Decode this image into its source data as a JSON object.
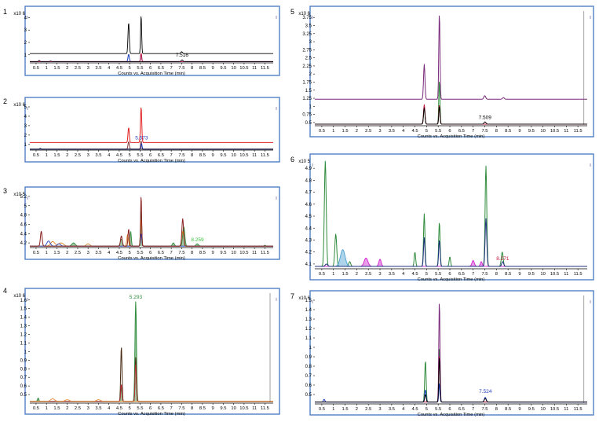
{
  "chart_data": [
    {
      "id": "1",
      "type": "line",
      "panel_label": "1",
      "multiplier": "x10 6",
      "xlabel": "Counts vs. Acquisition Time (min)",
      "x_ticks": [
        "0.5",
        "1",
        "1.5",
        "2",
        "2.5",
        "3",
        "3.5",
        "4",
        "4.5",
        "5",
        "5.5",
        "6",
        "6.5",
        "7",
        "7.5",
        "8",
        "8.5",
        "9",
        "9.5",
        "10",
        "10.5",
        "11",
        "11.5"
      ],
      "xlim": [
        0.2,
        11.9
      ],
      "y_ticks": [
        "1",
        "2",
        "3",
        "4"
      ],
      "ylim": [
        0.35,
        4.6
      ],
      "annotations": [
        {
          "text": "7.516",
          "x": 7.516,
          "y": 0.72,
          "color": "#000000"
        }
      ],
      "series": [
        {
          "color": "#000000",
          "baseline": 1.1,
          "width": 0.9,
          "peaks": [
            [
              4.95,
              3.6,
              0.03
            ],
            [
              5.55,
              4.2,
              0.025
            ],
            [
              7.5,
              1.25,
              0.04
            ]
          ]
        },
        {
          "color": "#1f3fbf",
          "baseline": 0.45,
          "width": 1.0,
          "peaks": [
            [
              4.95,
              1.05,
              0.03
            ],
            [
              5.55,
              1.1,
              0.025
            ]
          ]
        },
        {
          "color": "#c0143c",
          "baseline": 0.45,
          "width": 1.0,
          "peaks": [
            [
              5.55,
              1.15,
              0.025
            ]
          ]
        },
        {
          "color": "#000000",
          "baseline": 0.45,
          "width": 0.8,
          "peaks": [
            [
              0.65,
              0.55,
              0.03
            ],
            [
              1.2,
              0.5,
              0.03
            ],
            [
              7.52,
              0.6,
              0.04
            ]
          ]
        }
      ]
    },
    {
      "id": "2",
      "type": "line",
      "panel_label": "2",
      "multiplier": "x10 6",
      "xlabel": "Counts vs. Acquisition Time (min)",
      "x_ticks": [
        "0.5",
        "1",
        "1.5",
        "2",
        "2.5",
        "3",
        "3.5",
        "4",
        "4.5",
        "5",
        "5.5",
        "6",
        "6.5",
        "7",
        "7.5",
        "8",
        "8.5",
        "9",
        "9.5",
        "10",
        "10.5",
        "11",
        "11.5"
      ],
      "xlim": [
        0.2,
        11.9
      ],
      "y_ticks": [
        "1",
        "2",
        "3",
        "4",
        "5"
      ],
      "ylim": [
        0.4,
        5.5
      ],
      "annotations": [
        {
          "text": "5.573",
          "x": 5.573,
          "y": 1.35,
          "color": "#1f3fbf"
        }
      ],
      "series": [
        {
          "color": "#e02020",
          "baseline": 1.2,
          "width": 1.0,
          "peaks": [
            [
              4.95,
              2.8,
              0.03
            ],
            [
              5.55,
              5.0,
              0.03
            ]
          ]
        },
        {
          "color": "#7a2020",
          "baseline": 0.5,
          "width": 0.9,
          "peaks": [
            [
              4.95,
              1.3,
              0.03
            ],
            [
              5.55,
              1.4,
              0.025
            ]
          ]
        },
        {
          "color": "#1f3fbf",
          "baseline": 0.5,
          "width": 1.0,
          "peaks": [
            [
              5.57,
              1.1,
              0.025
            ]
          ]
        },
        {
          "color": "#000000",
          "baseline": 0.5,
          "width": 0.7,
          "peaks": [
            [
              0.7,
              0.6,
              0.03
            ]
          ]
        }
      ]
    },
    {
      "id": "3",
      "type": "line",
      "panel_label": "3",
      "multiplier": "x10 5",
      "xlabel": "Counts vs. Acquisition Time (min)",
      "x_ticks": [
        "0.5",
        "1",
        "1.5",
        "2",
        "2.5",
        "3",
        "3.5",
        "4",
        "4.5",
        "5",
        "5.5",
        "6",
        "6.5",
        "7",
        "7.5",
        "8",
        "8.5",
        "9",
        "9.5",
        "10",
        "10.5",
        "11",
        "11.5"
      ],
      "xlim": [
        0.2,
        11.9
      ],
      "y_ticks": [
        "4.2",
        "4.4",
        "4.6",
        "4.8",
        "5",
        "5.2"
      ],
      "ylim": [
        4.1,
        5.3
      ],
      "annotations": [
        {
          "text": "8.259",
          "x": 8.259,
          "y": 4.2,
          "color": "#3cc03c"
        }
      ],
      "series": [
        {
          "color": "#2e8b3c",
          "baseline": 4.13,
          "width": 0.9,
          "fill": true,
          "peaks": [
            [
              2.3,
              4.2,
              0.08
            ],
            [
              4.6,
              4.28,
              0.05
            ],
            [
              5.05,
              4.45,
              0.03
            ],
            [
              5.55,
              4.9,
              0.03
            ],
            [
              7.1,
              4.2,
              0.05
            ],
            [
              7.6,
              4.55,
              0.05
            ],
            [
              8.25,
              4.18,
              0.06
            ],
            [
              11.5,
              4.15,
              0.03
            ]
          ]
        },
        {
          "color": "#e08020",
          "baseline": 4.13,
          "width": 0.9,
          "peaks": [
            [
              1.3,
              4.23,
              0.1
            ],
            [
              1.7,
              4.2,
              0.12
            ],
            [
              3.0,
              4.18,
              0.08
            ],
            [
              4.9,
              4.38,
              0.04
            ],
            [
              5.55,
              4.7,
              0.03
            ],
            [
              7.55,
              4.45,
              0.05
            ]
          ]
        },
        {
          "color": "#2040c0",
          "baseline": 4.13,
          "width": 0.9,
          "peaks": [
            [
              1.1,
              4.24,
              0.08
            ],
            [
              1.6,
              4.18,
              0.08
            ],
            [
              5.55,
              4.4,
              0.03
            ]
          ]
        },
        {
          "color": "#8b2020",
          "baseline": 4.13,
          "width": 1.0,
          "peaks": [
            [
              0.75,
              4.45,
              0.04
            ],
            [
              4.6,
              4.35,
              0.04
            ],
            [
              4.95,
              4.5,
              0.03
            ],
            [
              5.55,
              5.22,
              0.025
            ],
            [
              7.55,
              4.72,
              0.04
            ]
          ]
        }
      ]
    },
    {
      "id": "4",
      "type": "line",
      "panel_label": "4",
      "multiplier": "x10 6",
      "xlabel": "Counts vs. Acquisition Time (min)",
      "x_ticks": [
        "0.5",
        "1",
        "1.5",
        "2",
        "2.5",
        "3",
        "3.5",
        "4",
        "4.5",
        "5",
        "5.5",
        "6",
        "6.5",
        "7",
        "7.5",
        "8",
        "8.5",
        "9",
        "9.5",
        "10",
        "10.5",
        "11",
        "11.5"
      ],
      "xlim": [
        0.2,
        11.9
      ],
      "y_ticks": [
        "0.5",
        "0.6",
        "0.7",
        "0.8",
        "0.9",
        "1",
        "1.1",
        "1.2",
        "1.3",
        "1.4",
        "1.5",
        "1.6"
      ],
      "ylim": [
        0.4,
        1.68
      ],
      "annotations": [
        {
          "text": "5.293",
          "x": 5.293,
          "y": 1.6,
          "color": "#2e8b3c"
        }
      ],
      "series": [
        {
          "color": "#2e8b3c",
          "baseline": 0.42,
          "width": 1.0,
          "fill": true,
          "peaks": [
            [
              0.6,
              0.46,
              0.03
            ],
            [
              4.6,
              0.58,
              0.03
            ],
            [
              5.29,
              1.58,
              0.035
            ]
          ]
        },
        {
          "color": "#4a2a10",
          "baseline": 0.42,
          "width": 1.0,
          "peaks": [
            [
              4.6,
              1.06,
              0.03
            ],
            [
              5.29,
              0.93,
              0.03
            ]
          ]
        },
        {
          "color": "#c0303c",
          "baseline": 0.42,
          "width": 0.9,
          "peaks": [
            [
              4.6,
              0.62,
              0.03
            ],
            [
              5.29,
              0.85,
              0.03
            ]
          ]
        },
        {
          "color": "#e08020",
          "baseline": 0.42,
          "width": 0.8,
          "peaks": [
            [
              1.3,
              0.45,
              0.1
            ],
            [
              2.0,
              0.44,
              0.1
            ],
            [
              3.5,
              0.44,
              0.1
            ]
          ]
        }
      ]
    },
    {
      "id": "5",
      "type": "line",
      "panel_label": "5",
      "multiplier": "x10 6",
      "xlabel": "Counts vs. Acquisition Time (min)",
      "x_ticks": [
        "0.5",
        "1",
        "1.5",
        "2",
        "2.5",
        "3",
        "3.5",
        "4",
        "4.5",
        "5",
        "5.5",
        "6",
        "6.5",
        "7",
        "7.5",
        "8",
        "8.5",
        "9",
        "9.5",
        "10",
        "10.5",
        "11",
        "11.5"
      ],
      "xlim": [
        0.2,
        11.9
      ],
      "y_ticks": [
        "0.5",
        "0.75",
        "1",
        "1.25",
        "1.5",
        "1.75",
        "2",
        "2.25",
        "2.5",
        "2.75",
        "3",
        "3.25",
        "3.5",
        "3.75"
      ],
      "ylim": [
        0.4,
        3.95
      ],
      "annotations": [
        {
          "text": "7.509",
          "x": 7.509,
          "y": 0.56,
          "color": "#000000"
        }
      ],
      "series": [
        {
          "color": "#7a2a7a",
          "baseline": 1.22,
          "width": 1.0,
          "peaks": [
            [
              4.9,
              2.3,
              0.03
            ],
            [
              5.55,
              3.9,
              0.025
            ],
            [
              7.5,
              1.33,
              0.04
            ],
            [
              8.3,
              1.27,
              0.04
            ]
          ]
        },
        {
          "color": "#2e8b3c",
          "baseline": 0.45,
          "width": 1.0,
          "peaks": [
            [
              5.55,
              1.8,
              0.025
            ],
            [
              4.9,
              1.0,
              0.03
            ]
          ]
        },
        {
          "color": "#c0143c",
          "baseline": 0.45,
          "width": 1.0,
          "peaks": [
            [
              4.9,
              1.05,
              0.03
            ],
            [
              5.55,
              1.05,
              0.025
            ]
          ]
        },
        {
          "color": "#000000",
          "baseline": 0.45,
          "width": 0.9,
          "peaks": [
            [
              4.9,
              0.95,
              0.03
            ],
            [
              5.55,
              1.0,
              0.025
            ],
            [
              7.51,
              0.52,
              0.04
            ]
          ]
        }
      ]
    },
    {
      "id": "6",
      "type": "line",
      "panel_label": "6",
      "multiplier": "x10 5",
      "xlabel": "Counts vs. Acquisition Time (min)",
      "x_ticks": [
        "0.5",
        "1",
        "1.5",
        "2",
        "2.5",
        "3",
        "3.5",
        "4",
        "4.5",
        "5",
        "5.5",
        "6",
        "6.5",
        "7",
        "7.5",
        "8",
        "8.5",
        "9",
        "9.5",
        "10",
        "10.5",
        "11",
        "11.5"
      ],
      "xlim": [
        0.2,
        11.9
      ],
      "y_ticks": [
        "4.1",
        "4.2",
        "4.3",
        "4.4",
        "4.5",
        "4.6",
        "4.7",
        "4.8",
        "4.9"
      ],
      "ylim": [
        4.06,
        4.98
      ],
      "annotations": [
        {
          "text": "8.271",
          "x": 8.271,
          "y": 4.12,
          "color": "#c0143c"
        }
      ],
      "series": [
        {
          "color": "#2e8b3c",
          "baseline": 4.08,
          "width": 1.0,
          "peaks": [
            [
              0.65,
              4.96,
              0.04
            ],
            [
              1.1,
              4.35,
              0.04
            ],
            [
              1.7,
              4.12,
              0.04
            ],
            [
              4.9,
              4.52,
              0.03
            ],
            [
              4.5,
              4.2,
              0.03
            ],
            [
              5.55,
              4.45,
              0.03
            ],
            [
              6.0,
              4.16,
              0.03
            ],
            [
              7.55,
              4.92,
              0.035
            ],
            [
              8.25,
              4.2,
              0.04
            ]
          ]
        },
        {
          "color": "#4aa0d0",
          "baseline": 4.08,
          "width": 0.9,
          "fill": true,
          "peaks": [
            [
              1.4,
              4.22,
              0.1
            ]
          ]
        },
        {
          "color": "#d020d0",
          "baseline": 4.08,
          "width": 0.9,
          "fill": true,
          "peaks": [
            [
              2.4,
              4.15,
              0.08
            ],
            [
              3.0,
              4.14,
              0.05
            ],
            [
              7.0,
              4.13,
              0.05
            ],
            [
              7.35,
              4.12,
              0.04
            ]
          ]
        },
        {
          "color": "#203080",
          "baseline": 4.08,
          "width": 1.0,
          "peaks": [
            [
              0.7,
              4.1,
              0.05
            ],
            [
              4.9,
              4.32,
              0.03
            ],
            [
              5.55,
              4.3,
              0.03
            ],
            [
              7.55,
              4.48,
              0.035
            ],
            [
              8.27,
              4.12,
              0.04
            ]
          ]
        }
      ]
    },
    {
      "id": "7",
      "type": "line",
      "panel_label": "7",
      "multiplier": "x10 6",
      "xlabel": "Counts vs. Acquisition Time (min)",
      "x_ticks": [
        "0.5",
        "1",
        "1.5",
        "2",
        "2.5",
        "3",
        "3.5",
        "4",
        "4.5",
        "5",
        "5.5",
        "6",
        "6.5",
        "7",
        "7.5",
        "8",
        "8.5",
        "9",
        "9.5",
        "10",
        "10.5",
        "11",
        "11.5"
      ],
      "xlim": [
        0.2,
        11.9
      ],
      "y_ticks": [
        "0.5",
        "0.6",
        "0.7",
        "0.8",
        "0.9",
        "1",
        "1.1",
        "1.2",
        "1.3",
        "1.4",
        "1.5"
      ],
      "ylim": [
        0.4,
        1.55
      ],
      "annotations": [
        {
          "text": "7.524",
          "x": 7.524,
          "y": 0.5,
          "color": "#1f3fbf"
        }
      ],
      "series": [
        {
          "color": "#2e8b3c",
          "baseline": 0.42,
          "width": 1.0,
          "peaks": [
            [
              4.95,
              0.86,
              0.03
            ],
            [
              5.55,
              1.0,
              0.025
            ]
          ]
        },
        {
          "color": "#7a2a7a",
          "baseline": 0.42,
          "width": 1.0,
          "peaks": [
            [
              5.55,
              1.5,
              0.025
            ]
          ]
        },
        {
          "color": "#c0143c",
          "baseline": 0.42,
          "width": 0.9,
          "peaks": [
            [
              5.55,
              0.92,
              0.025
            ]
          ]
        },
        {
          "color": "#1f3fbf",
          "baseline": 0.42,
          "width": 1.0,
          "peaks": [
            [
              0.6,
              0.45,
              0.03
            ],
            [
              4.95,
              0.55,
              0.03
            ],
            [
              5.55,
              0.62,
              0.025
            ],
            [
              7.52,
              0.47,
              0.04
            ]
          ]
        },
        {
          "color": "#000000",
          "baseline": 0.42,
          "width": 0.9,
          "peaks": [
            [
              4.95,
              0.5,
              0.03
            ],
            [
              5.55,
              0.9,
              0.025
            ],
            [
              7.52,
              0.46,
              0.04
            ]
          ]
        }
      ]
    }
  ],
  "colors": {
    "frame": "#4f7fc4",
    "axis": "#000000",
    "tick_text": "#000000",
    "gray_marker": "#b0b0b0"
  }
}
